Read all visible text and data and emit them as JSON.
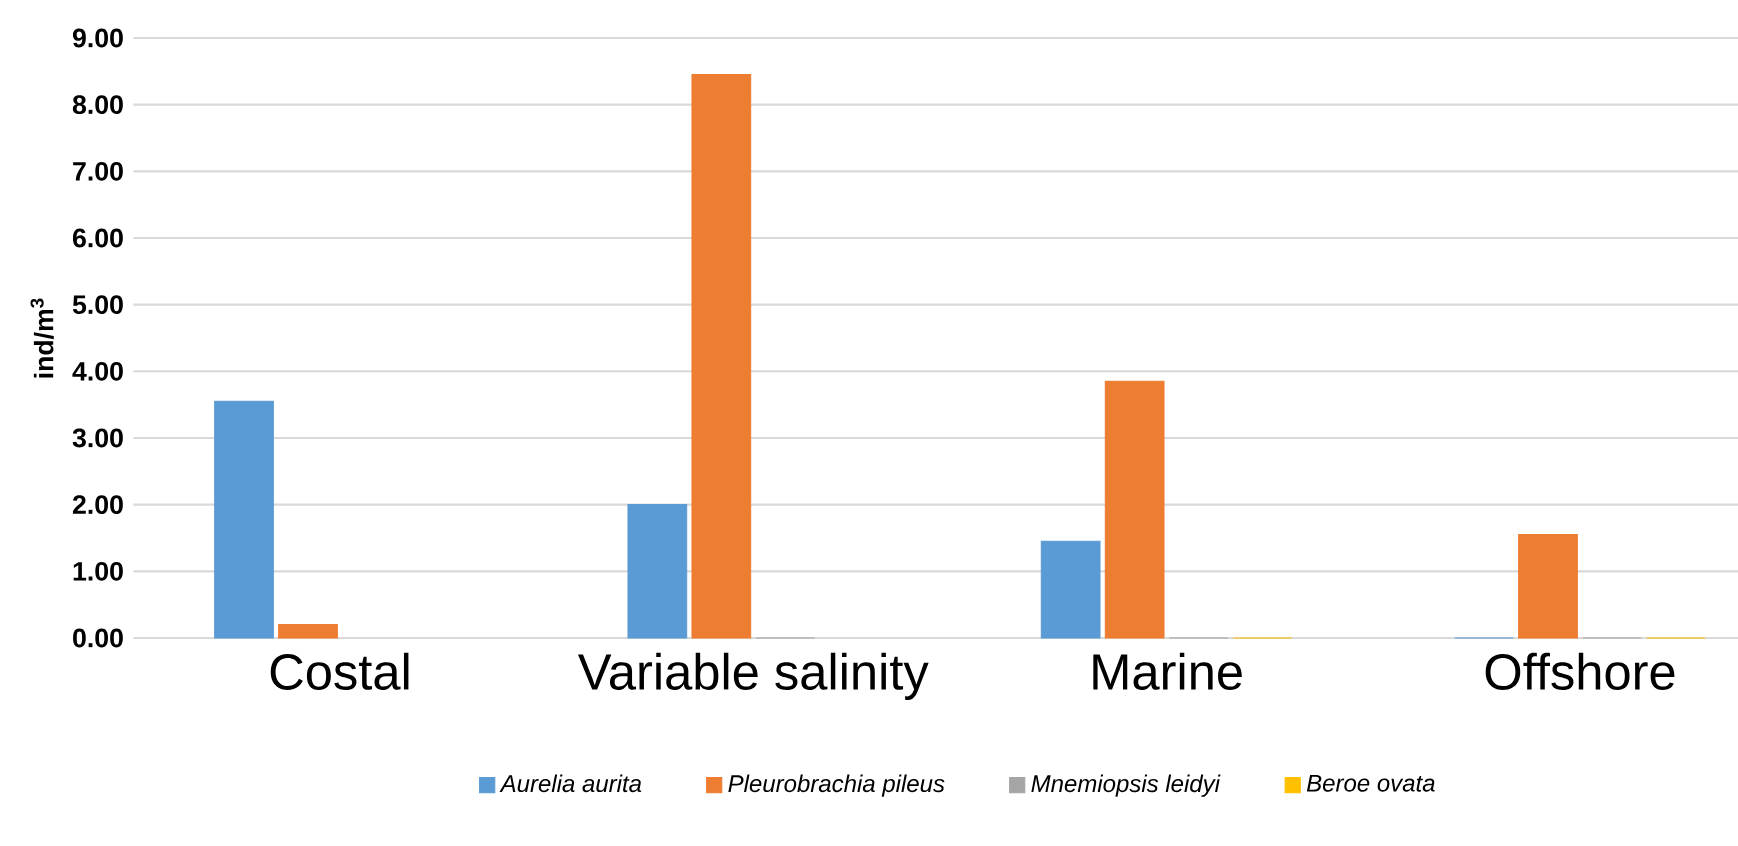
{
  "chart_data": {
    "type": "bar",
    "ylabel": "ind/m$^{3}$",
    "categories": [
      "Costal",
      "Variable salinity",
      "Marine",
      "Offshore"
    ],
    "series": [
      {
        "name": "*Aurelia aurita*",
        "color": "#5b9bd5",
        "values": [
          3.55,
          2.0,
          1.45,
          0
        ]
      },
      {
        "name": "*Pleurobrachia pileus*",
        "color": "#ed7d31",
        "values": [
          0.2,
          8.45,
          3.85,
          1.55
        ]
      },
      {
        "name": "*Mnemiopsis leidyi*",
        "color": "#a5a5a5",
        "values": [
          null,
          0,
          0,
          0
        ]
      },
      {
        "name": "*Beroe ovata*",
        "color": "#ffc000",
        "values": [
          null,
          null,
          0,
          0
        ]
      }
    ],
    "ylim": [
      0,
      9
    ],
    "yticks": [
      {
        "value": 0,
        "label": "0.00"
      },
      {
        "value": 1,
        "label": "1.00"
      },
      {
        "value": 2,
        "label": "2.00"
      },
      {
        "value": 3,
        "label": "3.00"
      },
      {
        "value": 4,
        "label": "4.00"
      },
      {
        "value": 5,
        "label": "5.00"
      },
      {
        "value": 6,
        "label": "6.00"
      },
      {
        "value": 7,
        "label": "7.00"
      },
      {
        "value": 8,
        "label": "8.00"
      },
      {
        "value": 9,
        "label": "9.00"
      }
    ],
    "grid": "y",
    "legend": "bottom"
  }
}
